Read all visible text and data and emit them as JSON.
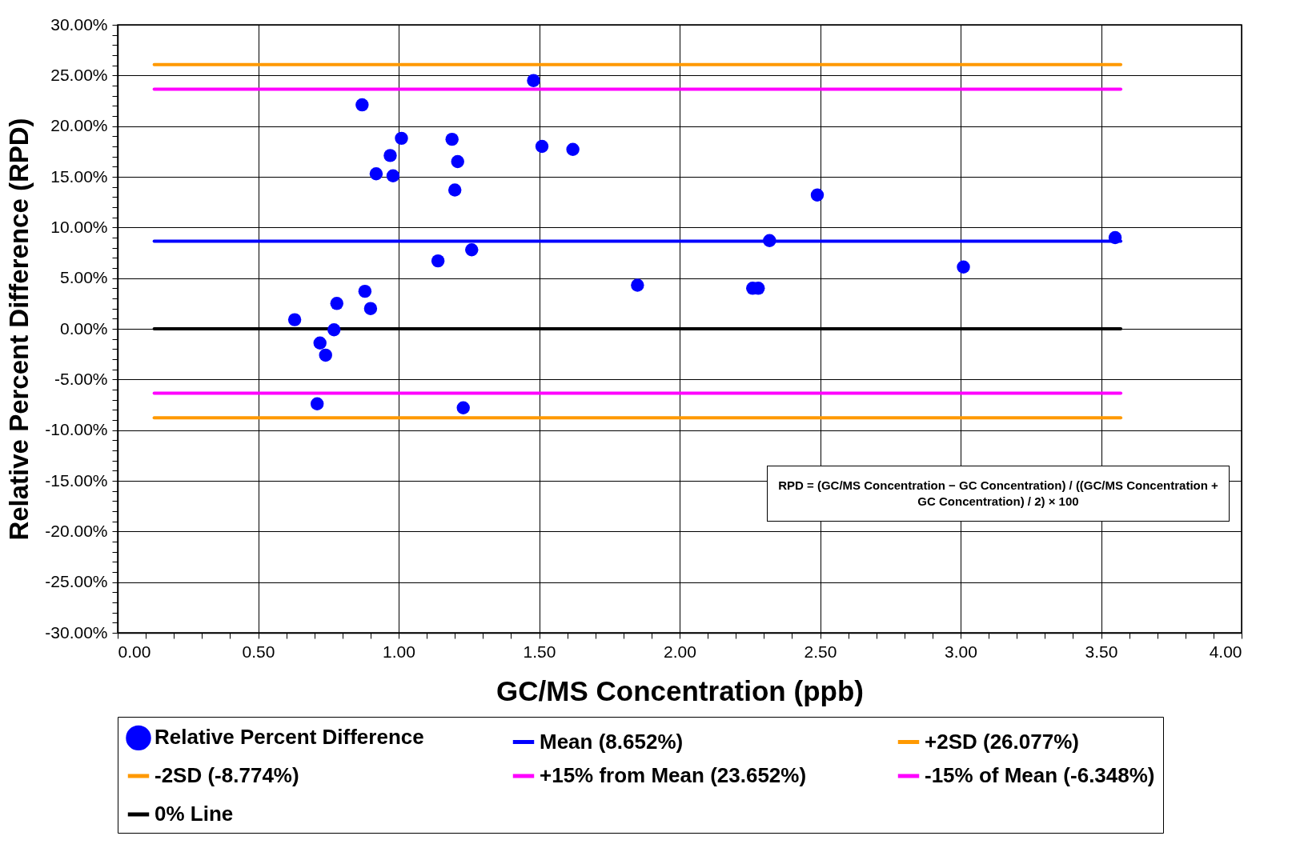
{
  "chart_data": {
    "type": "scatter",
    "xlabel": "GC/MS Concentration (ppb)",
    "ylabel": "Relative Percent Difference (RPD)",
    "xlim": [
      0,
      4
    ],
    "ylim": [
      -30,
      30
    ],
    "xticks": [
      {
        "value": 0,
        "label": "0.00"
      },
      {
        "value": 0.1,
        "label": null
      },
      {
        "value": 0.2,
        "label": null
      },
      {
        "value": 0.3,
        "label": null
      },
      {
        "value": 0.4,
        "label": null
      },
      {
        "value": 0.5,
        "label": "0.50"
      },
      {
        "value": 0.6,
        "label": null
      },
      {
        "value": 0.7,
        "label": null
      },
      {
        "value": 0.8,
        "label": null
      },
      {
        "value": 0.9,
        "label": null
      },
      {
        "value": 1,
        "label": "1.00"
      },
      {
        "value": 1.1,
        "label": null
      },
      {
        "value": 1.2,
        "label": null
      },
      {
        "value": 1.3,
        "label": null
      },
      {
        "value": 1.4,
        "label": null
      },
      {
        "value": 1.5,
        "label": "1.50"
      },
      {
        "value": 1.6,
        "label": null
      },
      {
        "value": 1.7,
        "label": null
      },
      {
        "value": 1.8,
        "label": null
      },
      {
        "value": 1.9,
        "label": null
      },
      {
        "value": 2,
        "label": "2.00"
      },
      {
        "value": 2.1,
        "label": null
      },
      {
        "value": 2.2,
        "label": null
      },
      {
        "value": 2.3,
        "label": null
      },
      {
        "value": 2.4,
        "label": null
      },
      {
        "value": 2.5,
        "label": "2.50"
      },
      {
        "value": 2.6,
        "label": null
      },
      {
        "value": 2.7,
        "label": null
      },
      {
        "value": 2.8,
        "label": null
      },
      {
        "value": 2.9,
        "label": null
      },
      {
        "value": 3,
        "label": "3.00"
      },
      {
        "value": 3.1,
        "label": null
      },
      {
        "value": 3.2,
        "label": null
      },
      {
        "value": 3.3,
        "label": null
      },
      {
        "value": 3.4,
        "label": null
      },
      {
        "value": 3.5,
        "label": "3.50"
      },
      {
        "value": 3.6,
        "label": null
      },
      {
        "value": 3.7,
        "label": null
      },
      {
        "value": 3.8,
        "label": null
      },
      {
        "value": 3.9,
        "label": null
      },
      {
        "value": 4,
        "label": "4.00"
      }
    ],
    "yticks": [
      {
        "value": -30,
        "label": "-30.00%"
      },
      {
        "value": -29,
        "label": null
      },
      {
        "value": -28,
        "label": null
      },
      {
        "value": -27,
        "label": null
      },
      {
        "value": -26,
        "label": null
      },
      {
        "value": -25,
        "label": "-25.00%"
      },
      {
        "value": -24,
        "label": null
      },
      {
        "value": -23,
        "label": null
      },
      {
        "value": -22,
        "label": null
      },
      {
        "value": -21,
        "label": null
      },
      {
        "value": -20,
        "label": "-20.00%"
      },
      {
        "value": -19,
        "label": null
      },
      {
        "value": -18,
        "label": null
      },
      {
        "value": -17,
        "label": null
      },
      {
        "value": -16,
        "label": null
      },
      {
        "value": -15,
        "label": "-15.00%"
      },
      {
        "value": -14,
        "label": null
      },
      {
        "value": -13,
        "label": null
      },
      {
        "value": -12,
        "label": null
      },
      {
        "value": -11,
        "label": null
      },
      {
        "value": -10,
        "label": "-10.00%"
      },
      {
        "value": -9,
        "label": null
      },
      {
        "value": -8,
        "label": null
      },
      {
        "value": -7,
        "label": null
      },
      {
        "value": -6,
        "label": null
      },
      {
        "value": -5,
        "label": "-5.00%"
      },
      {
        "value": -4,
        "label": null
      },
      {
        "value": -3,
        "label": null
      },
      {
        "value": -2,
        "label": null
      },
      {
        "value": -1,
        "label": null
      },
      {
        "value": 0,
        "label": "0.00%"
      },
      {
        "value": 1,
        "label": null
      },
      {
        "value": 2,
        "label": null
      },
      {
        "value": 3,
        "label": null
      },
      {
        "value": 4,
        "label": null
      },
      {
        "value": 5,
        "label": "5.00%"
      },
      {
        "value": 6,
        "label": null
      },
      {
        "value": 7,
        "label": null
      },
      {
        "value": 8,
        "label": null
      },
      {
        "value": 9,
        "label": null
      },
      {
        "value": 10,
        "label": "10.00%"
      },
      {
        "value": 11,
        "label": null
      },
      {
        "value": 12,
        "label": null
      },
      {
        "value": 13,
        "label": null
      },
      {
        "value": 14,
        "label": null
      },
      {
        "value": 15,
        "label": "15.00%"
      },
      {
        "value": 16,
        "label": null
      },
      {
        "value": 17,
        "label": null
      },
      {
        "value": 18,
        "label": null
      },
      {
        "value": 19,
        "label": null
      },
      {
        "value": 20,
        "label": "20.00%"
      },
      {
        "value": 21,
        "label": null
      },
      {
        "value": 22,
        "label": null
      },
      {
        "value": 23,
        "label": null
      },
      {
        "value": 24,
        "label": null
      },
      {
        "value": 25,
        "label": "25.00%"
      },
      {
        "value": 26,
        "label": null
      },
      {
        "value": 27,
        "label": null
      },
      {
        "value": 28,
        "label": null
      },
      {
        "value": 29,
        "label": null
      },
      {
        "value": 30,
        "label": "30.00%"
      }
    ],
    "grid": true,
    "legend": "bottom",
    "series": [
      {
        "name": "Relative Percent Difference",
        "marker": "circle",
        "color": "#0000ff",
        "x": [
          0.87,
          1.48,
          1.01,
          1.19,
          0.97,
          0.92,
          0.98,
          1.21,
          1.2,
          1.51,
          1.62,
          1.14,
          1.26,
          0.88,
          0.78,
          0.9,
          0.63,
          0.77,
          0.72,
          0.74,
          0.71,
          1.23,
          1.85,
          2.26,
          2.28,
          2.32,
          2.49,
          3.01,
          3.55
        ],
        "values": [
          22.1,
          24.5,
          18.8,
          18.7,
          17.1,
          15.3,
          15.1,
          16.5,
          13.7,
          18,
          17.7,
          6.7,
          7.8,
          3.7,
          2.5,
          2,
          0.9,
          -0.1,
          -1.4,
          -2.6,
          -7.4,
          -7.8,
          4.3,
          4,
          4,
          8.7,
          13.2,
          6.1,
          9
        ]
      },
      {
        "name": "Mean (8.652%)",
        "type": "line",
        "color": "#0000ff",
        "x": [
          0.13,
          3.57
        ],
        "values": [
          8.652,
          8.652
        ]
      },
      {
        "name": "+2SD (26.077%)",
        "type": "line",
        "color": "#ff9900",
        "x": [
          0.13,
          3.57
        ],
        "values": [
          26.077,
          26.077
        ]
      },
      {
        "name": "-2SD (-8.774%)",
        "type": "line",
        "color": "#ff9900",
        "x": [
          0.13,
          3.57
        ],
        "values": [
          -8.774,
          -8.774
        ]
      },
      {
        "name": "+15% from Mean (23.652%)",
        "type": "line",
        "color": "#ff00ff",
        "x": [
          0.13,
          3.57
        ],
        "values": [
          23.652,
          23.652
        ]
      },
      {
        "name": "-15% of Mean (-6.348%)",
        "type": "line",
        "color": "#ff00ff",
        "x": [
          0.13,
          3.57
        ],
        "values": [
          -6.348,
          -6.348
        ]
      },
      {
        "name": "0% Line",
        "type": "line",
        "color": "#000000",
        "x": [
          0.13,
          3.57
        ],
        "values": [
          0,
          0
        ]
      }
    ],
    "annotations": [
      "RPD = (GC/MS Concentration − GC Concentration) / ((GC/MS Concentration + GC Concentration) / 2) × 100"
    ]
  }
}
